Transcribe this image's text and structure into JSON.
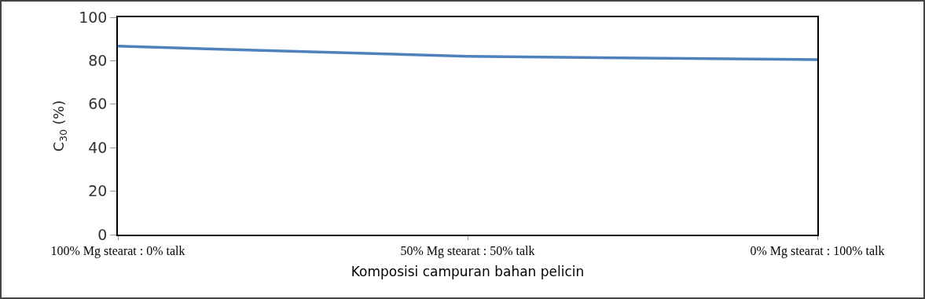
{
  "chart_data": {
    "type": "line",
    "categories": [
      "100% Mg stearat : 0% talk",
      "50% Mg stearat : 50% talk",
      "0% Mg stearat : 100% talk"
    ],
    "series": [
      {
        "color": "#4f81bd",
        "values": [
          86.7,
          82,
          80.5
        ]
      }
    ],
    "xlabel": "Komposisi campuran bahan pelicin",
    "ylabel": "C$_{30}$ (%)",
    "ylim": [
      0,
      100
    ],
    "yticks": [
      0,
      20,
      40,
      60,
      80,
      100
    ],
    "grid": false,
    "marker": "none",
    "line_style": "solid"
  }
}
